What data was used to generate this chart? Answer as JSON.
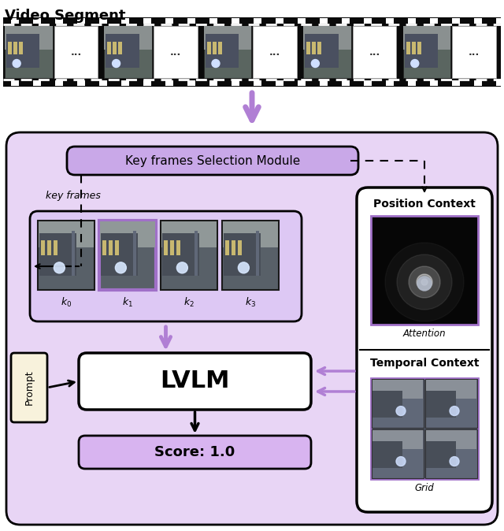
{
  "title": "Video Segment",
  "bg_color": "#ffffff",
  "film_strip_color": "#111111",
  "main_box_color": "#e8d5f5",
  "purple_light": "#c9a8e8",
  "arrow_purple": "#b07fd4",
  "kf_highlight_color": "#a070c8",
  "score_box_bg": "#d8b4f0",
  "keyframes_label": "key frames",
  "selection_module_label": "Key frames Selection Module",
  "lvlm_label": "LVLM",
  "score_label": "Score: 1.0",
  "prompt_label": "Prompt",
  "position_context_label": "Position Context",
  "temporal_context_label": "Temporal Context",
  "attention_label": "Attention",
  "grid_label": "Grid",
  "k_labels": [
    "k_0",
    "k_1",
    "k_2",
    "k_3"
  ]
}
